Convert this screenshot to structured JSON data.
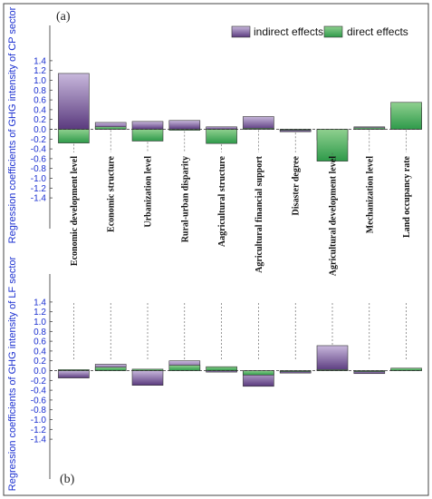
{
  "colors": {
    "indirect_top": "#c8b8dc",
    "indirect_bottom": "#5a3a7e",
    "direct_top": "#8fd08f",
    "direct_bottom": "#2e9a4a",
    "axis_label": "#1a2fd0",
    "frame": "#444444"
  },
  "chart_data": [
    {
      "type": "bar",
      "panel_label": "(a)",
      "ylabel": "Regression coefficients of GHG intensity of CP sector",
      "ylim": [
        -1.5,
        1.5
      ],
      "yticks": [
        "1.4",
        "1.2",
        "1.0",
        "0.8",
        "0.6",
        "0.4",
        "0.2",
        "0.0",
        "-0.2",
        "-0.4",
        "-0.6",
        "-0.8",
        "-1.0",
        "-1.2",
        "-1.4"
      ],
      "legend": {
        "position": "top-right",
        "entries": [
          "indirect effects",
          "direct effects"
        ]
      },
      "categories": [
        "Economic development level",
        "Economic structure",
        "Urbanization level",
        "Rural-urban disparity",
        "Aagricultural structure",
        "Agricultural financial support",
        "Disaster degree",
        "Agricultural development level",
        "Mechanization level",
        "Land occupancy rate"
      ],
      "series": [
        {
          "name": "indirect effects",
          "values": [
            1.14,
            0.14,
            0.16,
            0.18,
            0.05,
            0.26,
            -0.05,
            -0.22,
            0.05,
            0.44
          ]
        },
        {
          "name": "direct effects",
          "values": [
            -0.28,
            0.05,
            -0.24,
            -0.02,
            -0.29,
            0.02,
            -0.01,
            -0.65,
            0.03,
            0.55
          ]
        }
      ]
    },
    {
      "type": "bar",
      "panel_label": "(b)",
      "ylabel": "Regression coefficients of GHG intensity of LF sector",
      "ylim": [
        -1.5,
        1.5
      ],
      "yticks": [
        "1.4",
        "1.2",
        "1.0",
        "0.8",
        "0.6",
        "0.4",
        "0.2",
        "0.0",
        "-0.2",
        "-0.4",
        "-0.6",
        "-0.8",
        "-1.0",
        "-1.2",
        "-1.4"
      ],
      "categories": [
        "Economic development level",
        "Economic structure",
        "Urbanization level",
        "Rural-urban disparity",
        "Aagricultural structure",
        "Agricultural financial support",
        "Disaster degree",
        "Agricultural development level",
        "Mechanization level",
        "Land occupancy rate"
      ],
      "series": [
        {
          "name": "indirect effects",
          "values": [
            -0.15,
            0.13,
            -0.3,
            0.2,
            -0.03,
            -0.32,
            -0.05,
            0.51,
            -0.06,
            0.02
          ]
        },
        {
          "name": "direct effects",
          "values": [
            0.02,
            0.07,
            0.03,
            0.11,
            0.08,
            -0.09,
            -0.02,
            0.02,
            -0.02,
            0.05
          ]
        }
      ]
    }
  ]
}
